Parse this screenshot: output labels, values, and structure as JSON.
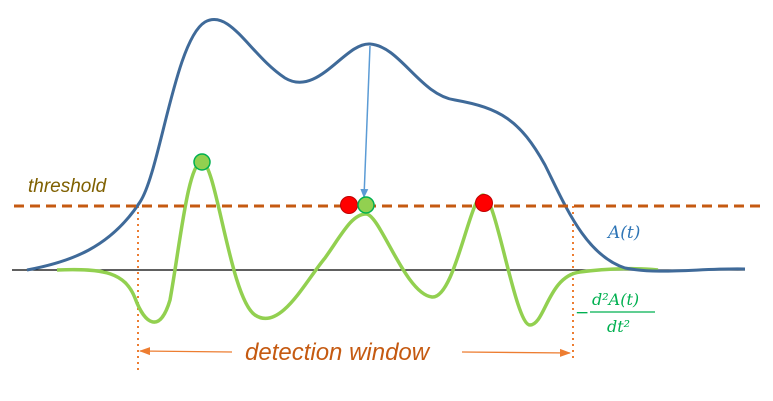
{
  "labels": {
    "threshold": "threshold",
    "detection_window": "detection window",
    "signal": "A(t)",
    "second_derivative_sign": "−",
    "second_derivative_numerator": "d²A(t)",
    "second_derivative_denominator": "dt²"
  },
  "colors": {
    "signal_curve": "#3f6a99",
    "derivative_curve": "#92d050",
    "threshold_line": "#c55a11",
    "threshold_text": "#7f6000",
    "window_text": "#c55a11",
    "window_arrow": "#ed7d31",
    "signal_label": "#2e75b6",
    "derivative_label": "#00b050",
    "baseline": "#000000",
    "peak_arrow": "#5b9bd5",
    "rejected_marker": "#ff0000",
    "accepted_marker": "#92d050"
  },
  "markers": {
    "accepted": [
      "green-circle",
      "green-circle"
    ],
    "rejected": [
      "red-circle",
      "red-circle"
    ]
  }
}
